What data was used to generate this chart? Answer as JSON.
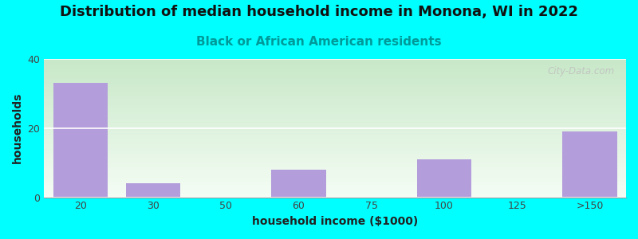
{
  "title": "Distribution of median household income in Monona, WI in 2022",
  "subtitle": "Black or African American residents",
  "xlabel": "household income ($1000)",
  "ylabel": "households",
  "background_color": "#00FFFF",
  "bar_color": "#b39ddb",
  "bar_categories": [
    "20",
    "30",
    "50",
    "60",
    "75",
    "100",
    "125",
    ">150"
  ],
  "bar_values": [
    33,
    4,
    0,
    8,
    0,
    11,
    0,
    19
  ],
  "ylim": [
    0,
    40
  ],
  "yticks": [
    0,
    20,
    40
  ],
  "title_fontsize": 13,
  "subtitle_fontsize": 11,
  "axis_label_fontsize": 10,
  "tick_fontsize": 9,
  "watermark": "City-Data.com"
}
